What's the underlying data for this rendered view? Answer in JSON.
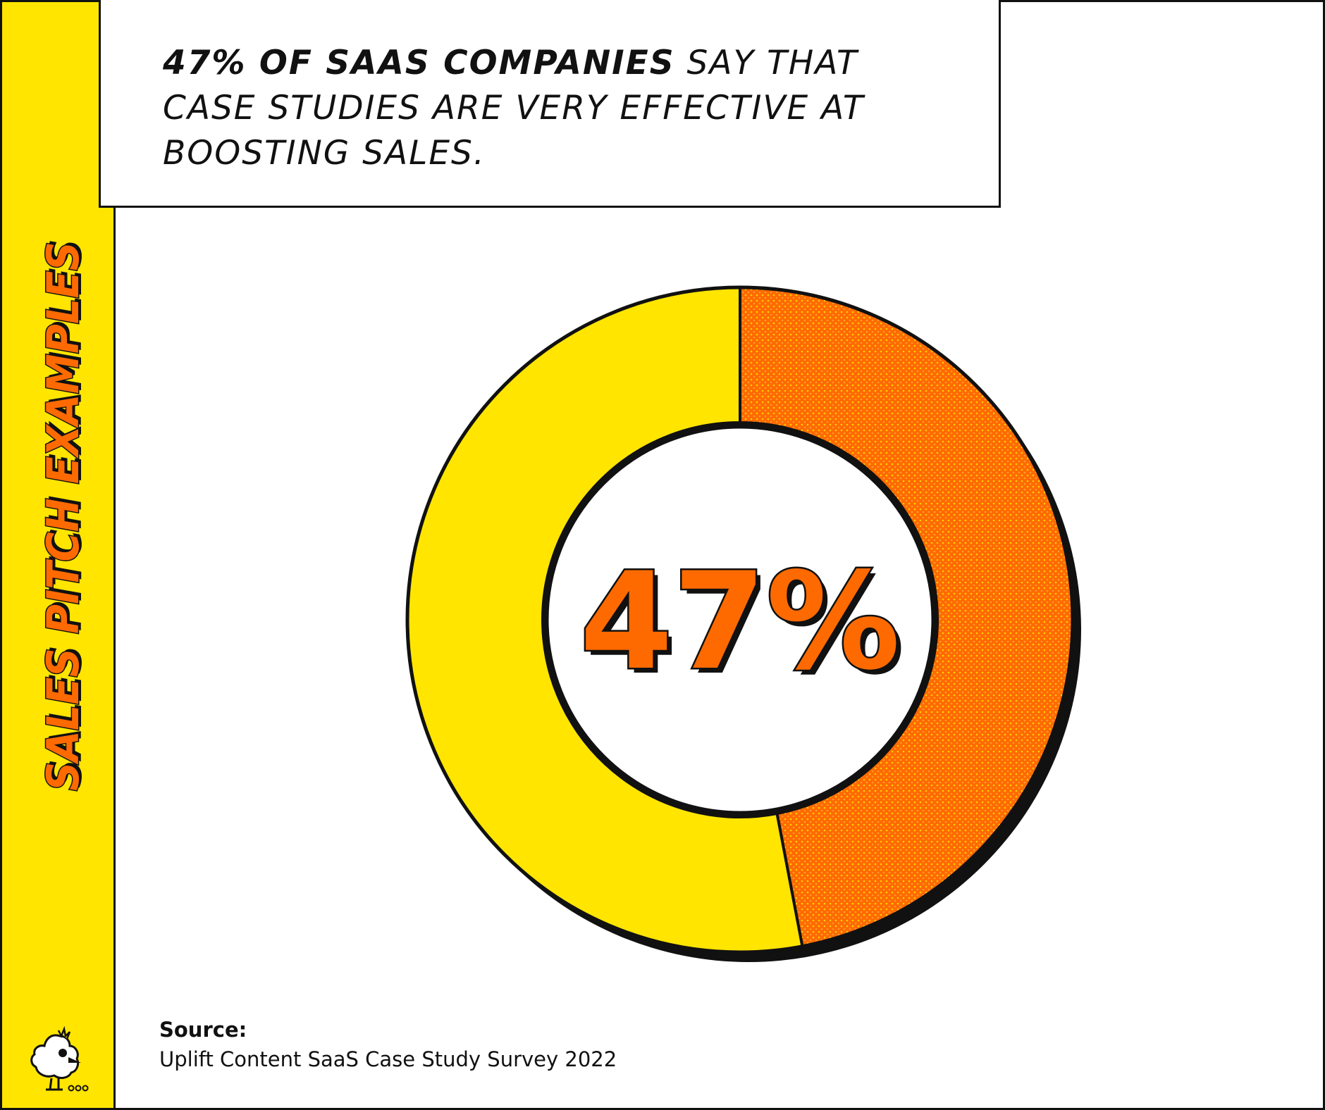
{
  "sidebar": {
    "title": "SALES PITCH EXAMPLES"
  },
  "headline": {
    "strong": "47% of SaaS companies",
    "rest": " say that case studies are very effective at boosting sales."
  },
  "center_label": "47%",
  "source": {
    "label": "Source:",
    "text": "Uplift Content SaaS Case Study Survey 2022"
  },
  "colors": {
    "yellow": "#FFE500",
    "orange": "#FF6A00",
    "outline": "#111111"
  },
  "chart_data": {
    "type": "pie",
    "variant": "donut",
    "series": [
      {
        "values": [
          47,
          53
        ]
      }
    ]
  }
}
